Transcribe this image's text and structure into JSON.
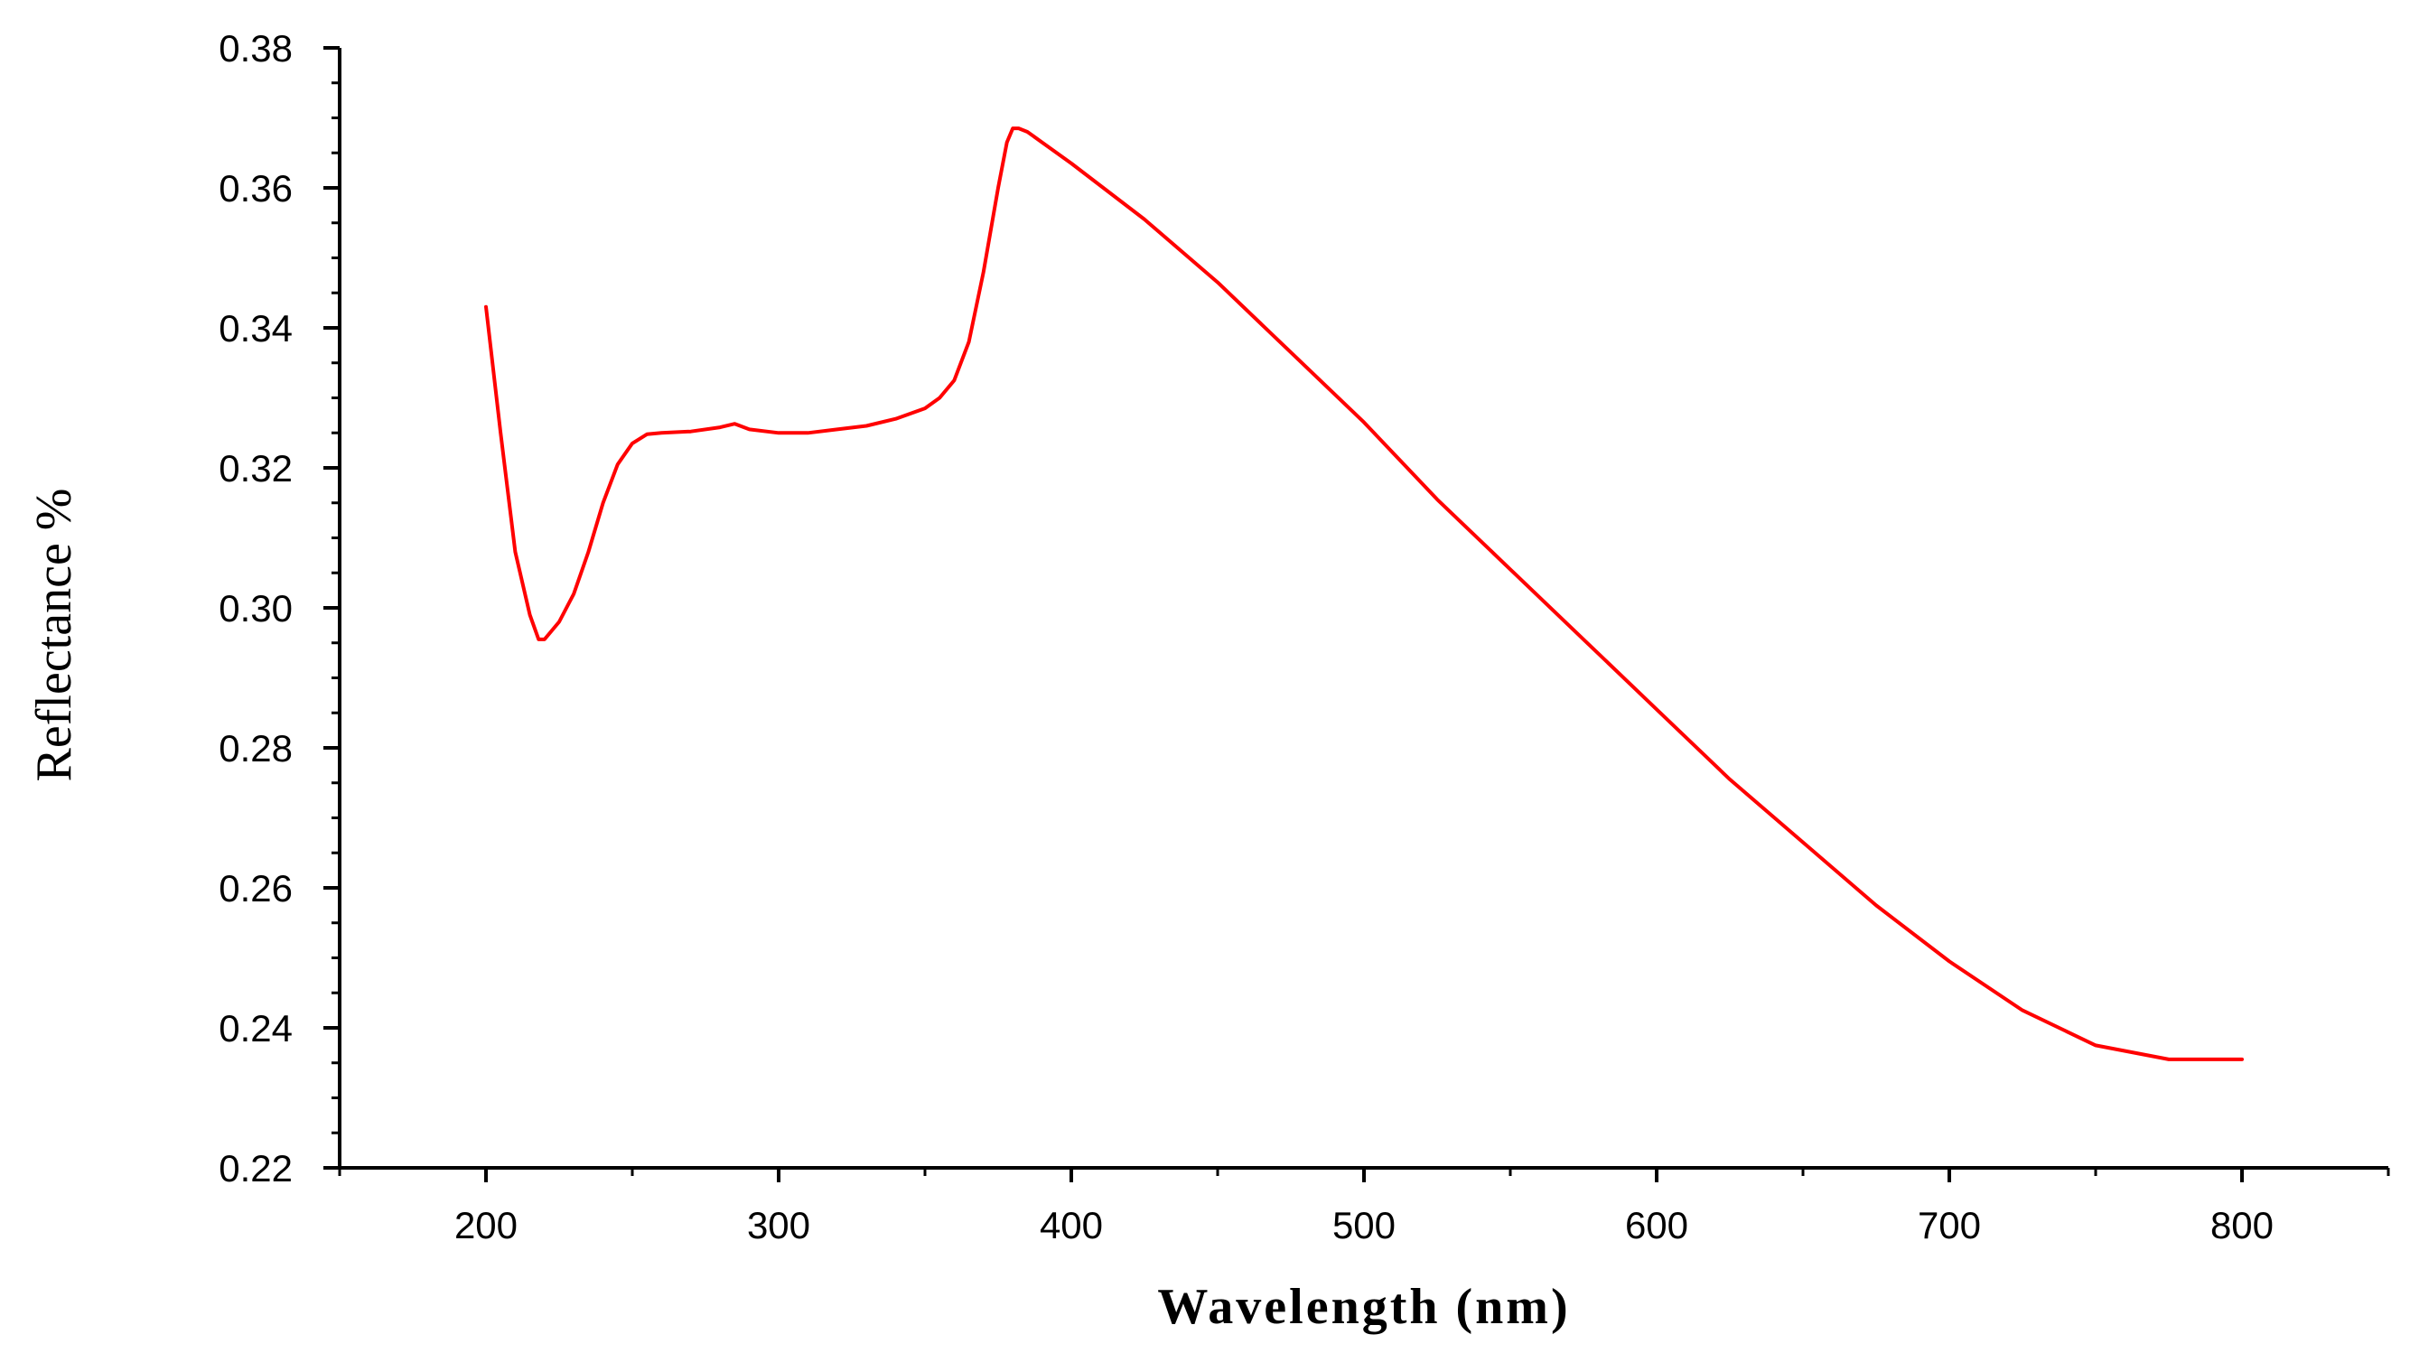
{
  "chart_data": {
    "type": "line",
    "title": "",
    "xlabel": "Wavelength (nm)",
    "ylabel": "Reflectance %",
    "xlim": [
      150,
      850
    ],
    "ylim": [
      0.22,
      0.38
    ],
    "x_ticks": [
      200,
      300,
      400,
      500,
      600,
      700,
      800
    ],
    "x_tick_labels": [
      "200",
      "300",
      "400",
      "500",
      "600",
      "700",
      "800"
    ],
    "y_ticks": [
      0.22,
      0.24,
      0.26,
      0.28,
      0.3,
      0.32,
      0.34,
      0.36,
      0.38
    ],
    "y_tick_labels": [
      "0.22",
      "0.24",
      "0.26",
      "0.28",
      "0.30",
      "0.32",
      "0.34",
      "0.36",
      "0.38"
    ],
    "grid": false,
    "legend": "none",
    "series": [
      {
        "color": "#ff0000",
        "x": [
          200,
          205,
          210,
          215,
          218,
          220,
          225,
          230,
          235,
          240,
          245,
          250,
          255,
          260,
          270,
          280,
          285,
          290,
          300,
          310,
          320,
          330,
          340,
          350,
          355,
          360,
          365,
          370,
          375,
          378,
          380,
          382,
          385,
          390,
          400,
          425,
          450,
          475,
          500,
          525,
          550,
          575,
          600,
          625,
          650,
          675,
          700,
          725,
          750,
          775,
          800
        ],
        "y": [
          0.343,
          0.325,
          0.308,
          0.299,
          0.2955,
          0.2955,
          0.298,
          0.302,
          0.308,
          0.315,
          0.3205,
          0.3235,
          0.3248,
          0.325,
          0.3252,
          0.3258,
          0.3263,
          0.3255,
          0.325,
          0.325,
          0.3255,
          0.326,
          0.327,
          0.3285,
          0.33,
          0.3325,
          0.338,
          0.348,
          0.36,
          0.3665,
          0.3685,
          0.3685,
          0.368,
          0.3665,
          0.3635,
          0.3555,
          0.3465,
          0.3365,
          0.3265,
          0.3155,
          0.3055,
          0.2955,
          0.2855,
          0.2755,
          0.2665,
          0.2575,
          0.2495,
          0.2425,
          0.2375,
          0.2355,
          0.2355
        ]
      }
    ]
  }
}
